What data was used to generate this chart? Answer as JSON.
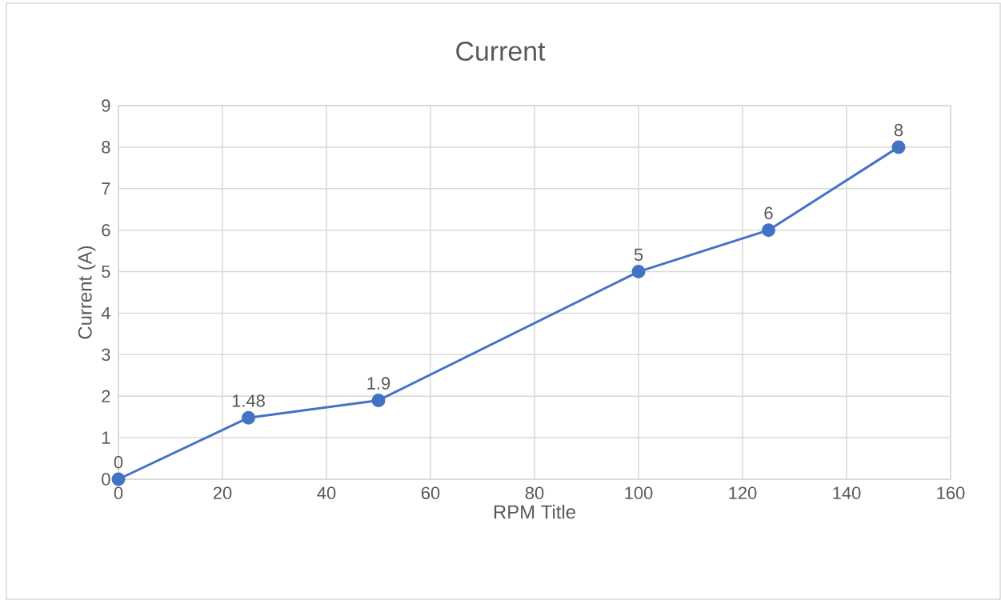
{
  "chart_data": {
    "type": "line",
    "title": "Current",
    "xlabel": "RPM Title",
    "ylabel": "Current (A)",
    "x": [
      0,
      25,
      50,
      100,
      125,
      150
    ],
    "series": [
      {
        "color": "#4472c4",
        "values": [
          0,
          1.48,
          1.9,
          5,
          6,
          8
        ]
      }
    ],
    "xlim": [
      0,
      160
    ],
    "xticks": [
      0,
      20,
      40,
      60,
      80,
      100,
      120,
      140,
      160
    ],
    "ylim": [
      0,
      9
    ],
    "yticks": [
      0,
      1,
      2,
      3,
      4,
      5,
      6,
      7,
      8,
      9
    ],
    "grid": true,
    "marker": "circle",
    "line_style": "solid",
    "data_labels": true
  }
}
